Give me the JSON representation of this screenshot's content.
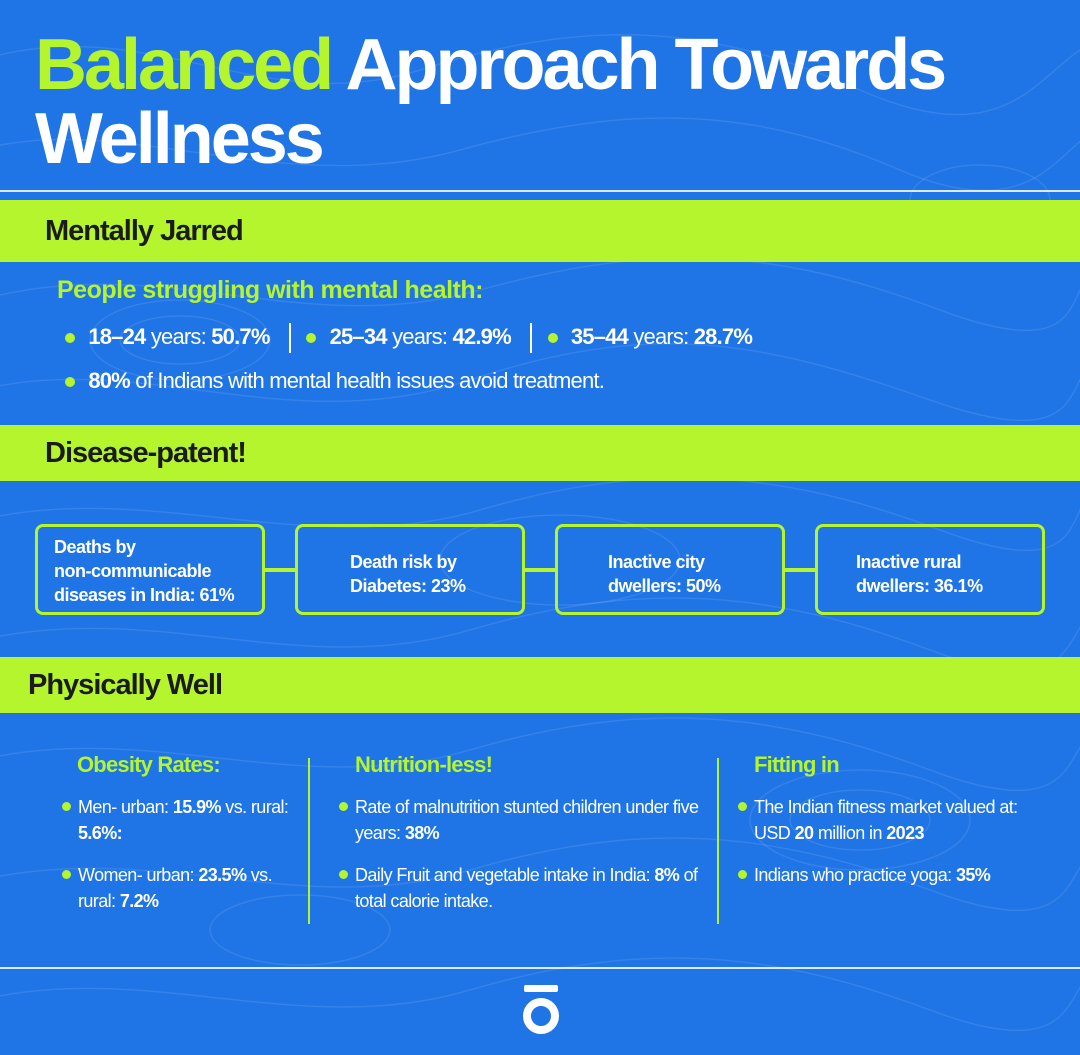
{
  "title": {
    "accent": "Balanced",
    "rest": "Approach Towards",
    "line2": "Wellness"
  },
  "sections": {
    "mental": {
      "heading": "Mentally Jarred",
      "subheading": "People struggling with mental health:",
      "stats": [
        {
          "label": "18–24",
          "mid": "years:",
          "value": "50.7%"
        },
        {
          "label": "25–34",
          "mid": "years:",
          "value": "42.9%"
        },
        {
          "label": "35–44",
          "mid": "years:",
          "value": "28.7%"
        }
      ],
      "treatment": {
        "value": "80%",
        "text": "of Indians with mental health issues avoid treatment."
      }
    },
    "disease": {
      "heading": "Disease-patent!",
      "boxes": [
        {
          "l1": "Deaths by",
          "l2": "non-communicable",
          "l3": "diseases in India: 61%"
        },
        {
          "l1": "Death risk by",
          "l2": "Diabetes: 23%"
        },
        {
          "l1": "Inactive city",
          "l2": "dwellers: 50%"
        },
        {
          "l1": "Inactive rural",
          "l2": "dwellers: 36.1%"
        }
      ]
    },
    "physical": {
      "heading": "Physically Well",
      "columns": [
        {
          "title": "Obesity Rates:",
          "items": [
            {
              "a": "Men- urban: ",
              "b": "15.9%",
              "c": " vs. rural: ",
              "d": "5.6%:"
            },
            {
              "a": "Women- urban: ",
              "b": "23.5%",
              "c": " vs. rural: ",
              "d": "7.2%"
            }
          ]
        },
        {
          "title": "Nutrition-less!",
          "items": [
            {
              "a": "Rate of malnutrition stunted children under five years: ",
              "b": "38%",
              "c": "",
              "d": ""
            },
            {
              "a": "Daily Fruit and vegetable intake in India: ",
              "b": "8%",
              "c": " of total calorie intake.",
              "d": ""
            }
          ]
        },
        {
          "title": "Fitting in",
          "items": [
            {
              "a": "The Indian fitness market valued at: USD ",
              "b": "20",
              "c": " million in ",
              "d": "2023"
            },
            {
              "a": "Indians who practice yoga: ",
              "b": "35%",
              "c": "",
              "d": ""
            }
          ]
        }
      ]
    }
  },
  "colors": {
    "background": "#1f74e6",
    "accent": "#b4f52e",
    "text": "#ffffff",
    "dark": "#1b1b1b"
  },
  "logo": {
    "icon": "brand-logo-icon"
  }
}
